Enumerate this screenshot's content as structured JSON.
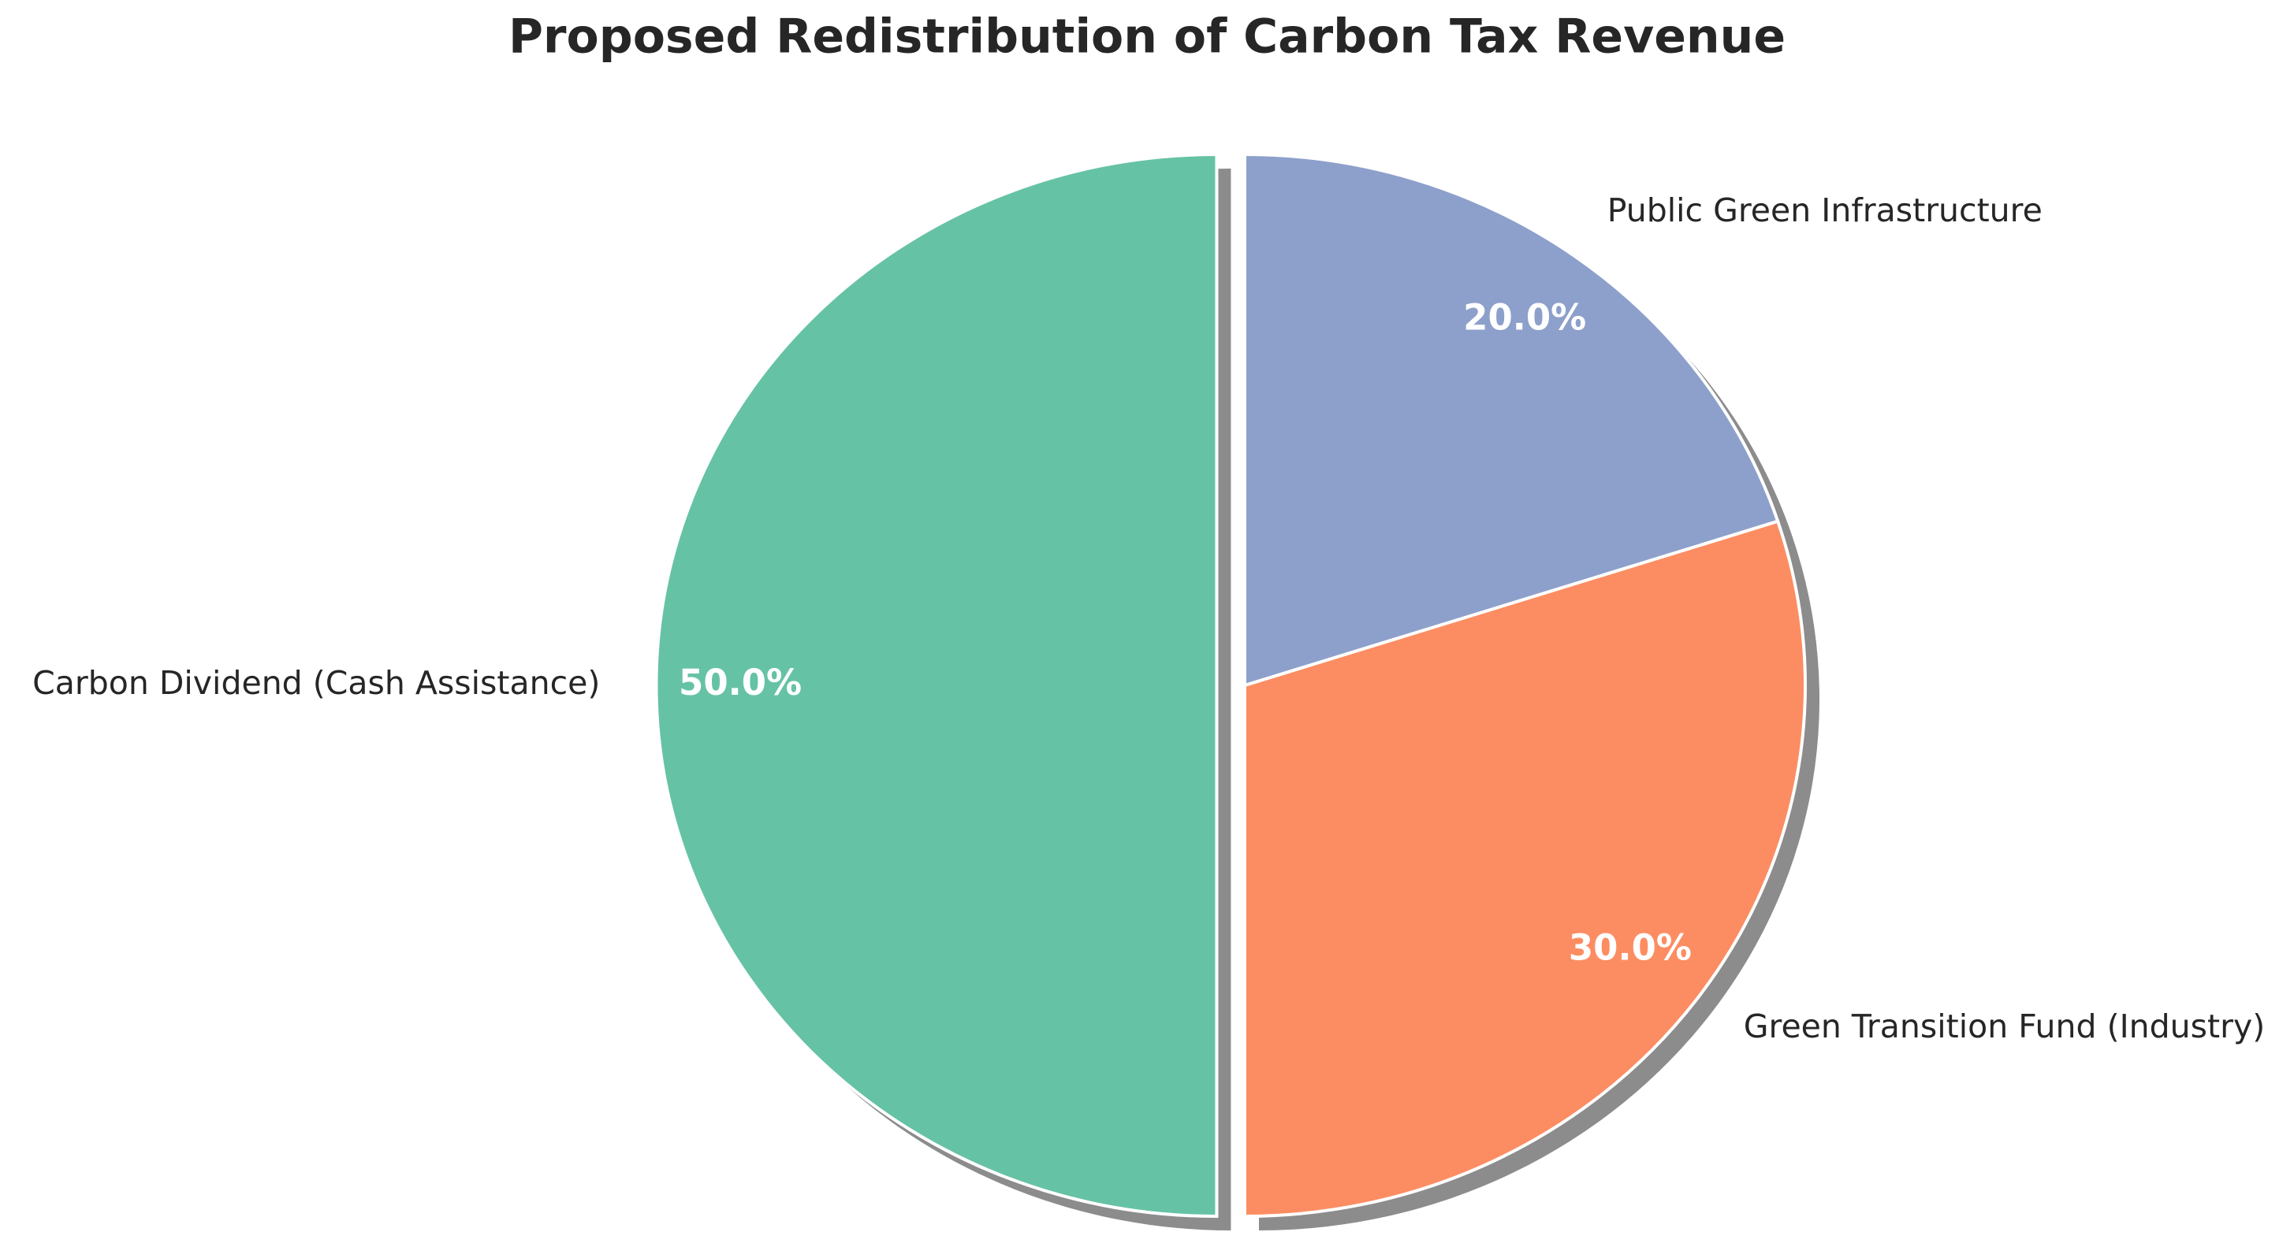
{
  "chart_data": {
    "type": "pie",
    "title": "Proposed Redistribution of Carbon Tax Revenue",
    "categories": [
      "Carbon Dividend (Cash Assistance)",
      "Green Transition Fund (Industry)",
      "Public Green Infrastructure"
    ],
    "values": [
      50,
      30,
      20
    ],
    "value_labels": [
      "50.0%",
      "30.0%",
      "20.0%"
    ],
    "colors": [
      "#66c2a5",
      "#fc8d62",
      "#8da0cb"
    ],
    "explode": [
      0.05,
      0,
      0
    ],
    "start_angle": 90,
    "shadow": true
  }
}
